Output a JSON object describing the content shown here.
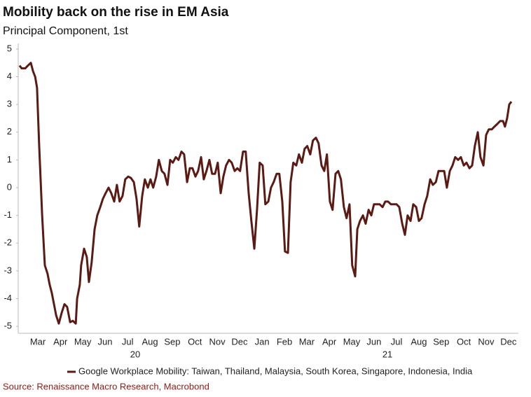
{
  "chart_data": {
    "type": "line",
    "title": "Mobility back on the rise in EM Asia",
    "subtitle": "Principal Component, 1st",
    "source": "Source: Renaissance Macro Research, Macrobond",
    "x": [
      2020.14,
      2020.148,
      2020.161,
      2020.171,
      2020.182,
      2020.19,
      2020.198,
      2020.205,
      2020.213,
      2020.224,
      2020.234,
      2020.244,
      2020.252,
      2020.26,
      2020.268,
      2020.276,
      2020.286,
      2020.297,
      2020.307,
      2020.317,
      2020.328,
      2020.338,
      2020.349,
      2020.354,
      2020.364,
      2020.369,
      2020.38,
      2020.39,
      2020.398,
      2020.408,
      2020.419,
      2020.429,
      2020.44,
      2020.45,
      2020.46,
      2020.471,
      2020.481,
      2020.492,
      2020.502,
      2020.512,
      2020.523,
      2020.533,
      2020.544,
      2020.554,
      2020.565,
      2020.575,
      2020.585,
      2020.596,
      2020.606,
      2020.617,
      2020.627,
      2020.637,
      2020.648,
      2020.658,
      2020.669,
      2020.679,
      2020.69,
      2020.7,
      2020.71,
      2020.721,
      2020.731,
      2020.742,
      2020.752,
      2020.763,
      2020.773,
      2020.783,
      2020.794,
      2020.804,
      2020.815,
      2020.825,
      2020.835,
      2020.846,
      2020.856,
      2020.867,
      2020.877,
      2020.888,
      2020.898,
      2020.908,
      2020.919,
      2020.929,
      2020.94,
      2020.95,
      2020.96,
      2020.971,
      2020.981,
      2020.992,
      2021.002,
      2021.013,
      2021.023,
      2021.033,
      2021.044,
      2021.054,
      2021.065,
      2021.075,
      2021.085,
      2021.096,
      2021.106,
      2021.117,
      2021.127,
      2021.138,
      2021.148,
      2021.158,
      2021.169,
      2021.179,
      2021.19,
      2021.2,
      2021.21,
      2021.221,
      2021.231,
      2021.242,
      2021.252,
      2021.263,
      2021.273,
      2021.283,
      2021.294,
      2021.304,
      2021.315,
      2021.325,
      2021.335,
      2021.346,
      2021.356,
      2021.367,
      2021.377,
      2021.388,
      2021.396,
      2021.406,
      2021.417,
      2021.427,
      2021.438,
      2021.448,
      2021.458,
      2021.469,
      2021.479,
      2021.49,
      2021.5,
      2021.51,
      2021.521,
      2021.531,
      2021.542,
      2021.552,
      2021.563,
      2021.573,
      2021.583,
      2021.594,
      2021.604,
      2021.615,
      2021.625,
      2021.635,
      2021.646,
      2021.656,
      2021.667,
      2021.677,
      2021.688,
      2021.698,
      2021.708,
      2021.719,
      2021.729,
      2021.74,
      2021.75,
      2021.76,
      2021.771,
      2021.781,
      2021.792,
      2021.802,
      2021.813,
      2021.823,
      2021.833,
      2021.844,
      2021.854,
      2021.865,
      2021.875,
      2021.885,
      2021.896,
      2021.906,
      2021.917,
      2021.927,
      2021.938,
      2021.945,
      2021.953,
      2021.961,
      2021.969
    ],
    "series": [
      {
        "name": "Google Workplace Mobility: Taiwan, Thailand, Malaysia, South Korea, Singapore, Indonesia, India",
        "color": "#5c1a14",
        "values": [
          4.4,
          4.3,
          4.3,
          4.4,
          4.5,
          4.2,
          4.0,
          3.6,
          1.5,
          -1.0,
          -2.8,
          -3.1,
          -3.5,
          -3.8,
          -4.2,
          -4.6,
          -4.9,
          -4.5,
          -4.2,
          -4.3,
          -4.85,
          -4.8,
          -4.9,
          -4.0,
          -3.5,
          -2.8,
          -2.2,
          -2.5,
          -3.4,
          -2.7,
          -1.5,
          -1.0,
          -0.7,
          -0.4,
          -0.2,
          0.0,
          -0.2,
          -0.5,
          0.1,
          -0.5,
          -0.3,
          0.3,
          0.4,
          0.35,
          0.2,
          -0.4,
          -1.4,
          -0.3,
          0.3,
          0.0,
          0.3,
          0.0,
          0.4,
          1.0,
          0.6,
          0.5,
          0.1,
          1.0,
          0.9,
          1.1,
          1.0,
          1.3,
          1.2,
          0.2,
          0.7,
          0.7,
          0.4,
          0.6,
          1.1,
          0.3,
          0.6,
          1.0,
          0.5,
          0.5,
          0.9,
          -0.2,
          0.4,
          0.8,
          1.0,
          0.9,
          0.6,
          0.7,
          0.6,
          1.3,
          1.3,
          -0.2,
          -1.2,
          -2.2,
          -0.8,
          0.9,
          0.8,
          -0.6,
          -0.5,
          0.0,
          0.2,
          0.5,
          0.5,
          -0.5,
          -2.3,
          -2.35,
          0.2,
          0.9,
          0.8,
          1.2,
          0.9,
          1.4,
          1.5,
          1.2,
          1.7,
          1.8,
          1.6,
          0.8,
          0.6,
          1.2,
          -0.5,
          -0.8,
          0.5,
          0.6,
          0.3,
          -0.7,
          -1.1,
          -0.6,
          -2.8,
          -3.2,
          -1.5,
          -1.2,
          -1.0,
          -1.3,
          -0.8,
          -1.0,
          -0.6,
          -0.6,
          -0.6,
          -0.7,
          -0.5,
          -0.5,
          -0.6,
          -0.6,
          -0.6,
          -0.7,
          -1.3,
          -1.7,
          -1.0,
          -1.2,
          -0.6,
          -0.7,
          -1.2,
          -1.1,
          -0.6,
          -0.3,
          0.3,
          0.1,
          0.2,
          0.6,
          0.6,
          0.6,
          0.0,
          0.6,
          0.8,
          1.1,
          1.0,
          1.1,
          0.8,
          0.9,
          0.7,
          0.8,
          1.5,
          2.0,
          1.1,
          0.8,
          1.9,
          2.1,
          2.1,
          2.2,
          2.3,
          2.4,
          2.4,
          2.2,
          2.5,
          3.0,
          3.1
        ]
      }
    ],
    "xlim": [
      2020.135,
      2021.995
    ],
    "ylim": [
      -5.25,
      5.2
    ],
    "yticks": [
      -5,
      -4,
      -3,
      -2,
      -1,
      0,
      1,
      2,
      3,
      4,
      5
    ],
    "xticks": [
      {
        "value": 2020.208,
        "label": "Mar"
      },
      {
        "value": 2020.292,
        "label": "Apr"
      },
      {
        "value": 2020.375,
        "label": "May"
      },
      {
        "value": 2020.458,
        "label": "Jun"
      },
      {
        "value": 2020.542,
        "label": "Jul"
      },
      {
        "value": 2020.625,
        "label": "Aug"
      },
      {
        "value": 2020.708,
        "label": "Sep"
      },
      {
        "value": 2020.792,
        "label": "Oct"
      },
      {
        "value": 2020.875,
        "label": "Nov"
      },
      {
        "value": 2020.958,
        "label": "Dec"
      },
      {
        "value": 2021.042,
        "label": "Jan"
      },
      {
        "value": 2021.125,
        "label": "Feb"
      },
      {
        "value": 2021.208,
        "label": "Mar"
      },
      {
        "value": 2021.292,
        "label": "Apr"
      },
      {
        "value": 2021.375,
        "label": "May"
      },
      {
        "value": 2021.458,
        "label": "Jun"
      },
      {
        "value": 2021.542,
        "label": "Jul"
      },
      {
        "value": 2021.625,
        "label": "Aug"
      },
      {
        "value": 2021.708,
        "label": "Sep"
      },
      {
        "value": 2021.792,
        "label": "Oct"
      },
      {
        "value": 2021.875,
        "label": "Nov"
      },
      {
        "value": 2021.958,
        "label": "Dec"
      }
    ],
    "year_labels": [
      {
        "value": 2020.57,
        "label": "20"
      },
      {
        "value": 2021.508,
        "label": "21"
      }
    ],
    "grid": false
  }
}
